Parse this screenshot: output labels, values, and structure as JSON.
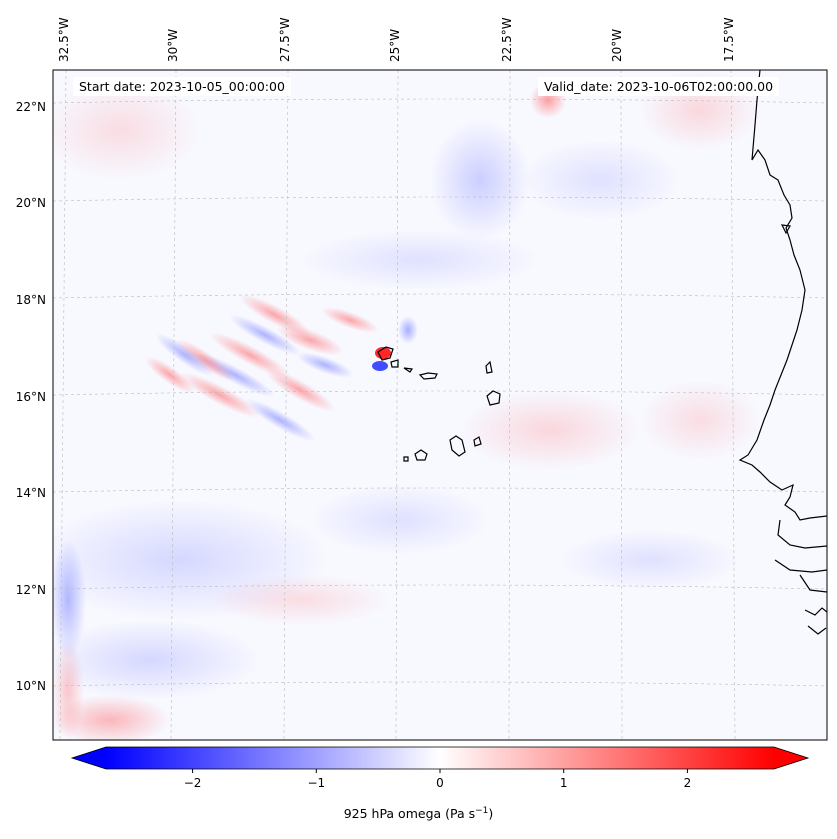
{
  "header": {
    "start_date": "Start date: 2023-10-05_00:00:00",
    "valid_date": "Valid_date: 2023-10-06T02:00:00.00"
  },
  "longitude_labels": [
    "32.5°W",
    "30°W",
    "27.5°W",
    "25°W",
    "22.5°W",
    "20°W",
    "17.5°W"
  ],
  "latitude_labels": [
    "22°N",
    "20°N",
    "18°N",
    "16°N",
    "14°N",
    "12°N",
    "10°N"
  ],
  "colorbar": {
    "label": "925 hPa omega (Pa s",
    "label_exponent": "−1",
    "label_close": ")",
    "range": [
      -2.7,
      2.7
    ],
    "ticks": [
      {
        "value": -2,
        "text": "−2"
      },
      {
        "value": -1,
        "text": "−1"
      },
      {
        "value": 0,
        "text": "0"
      },
      {
        "value": 1,
        "text": "1"
      },
      {
        "value": 2,
        "text": "2"
      }
    ],
    "colors": {
      "negative": "#0000ff",
      "zero": "#ffffff",
      "positive": "#ff0000"
    }
  },
  "map": {
    "variable": "925 hPa omega",
    "colormap": "bwr",
    "gridlines": true,
    "coastline_color": "#000000",
    "features": [
      "Cape Verde islands",
      "West African coastline"
    ]
  }
}
